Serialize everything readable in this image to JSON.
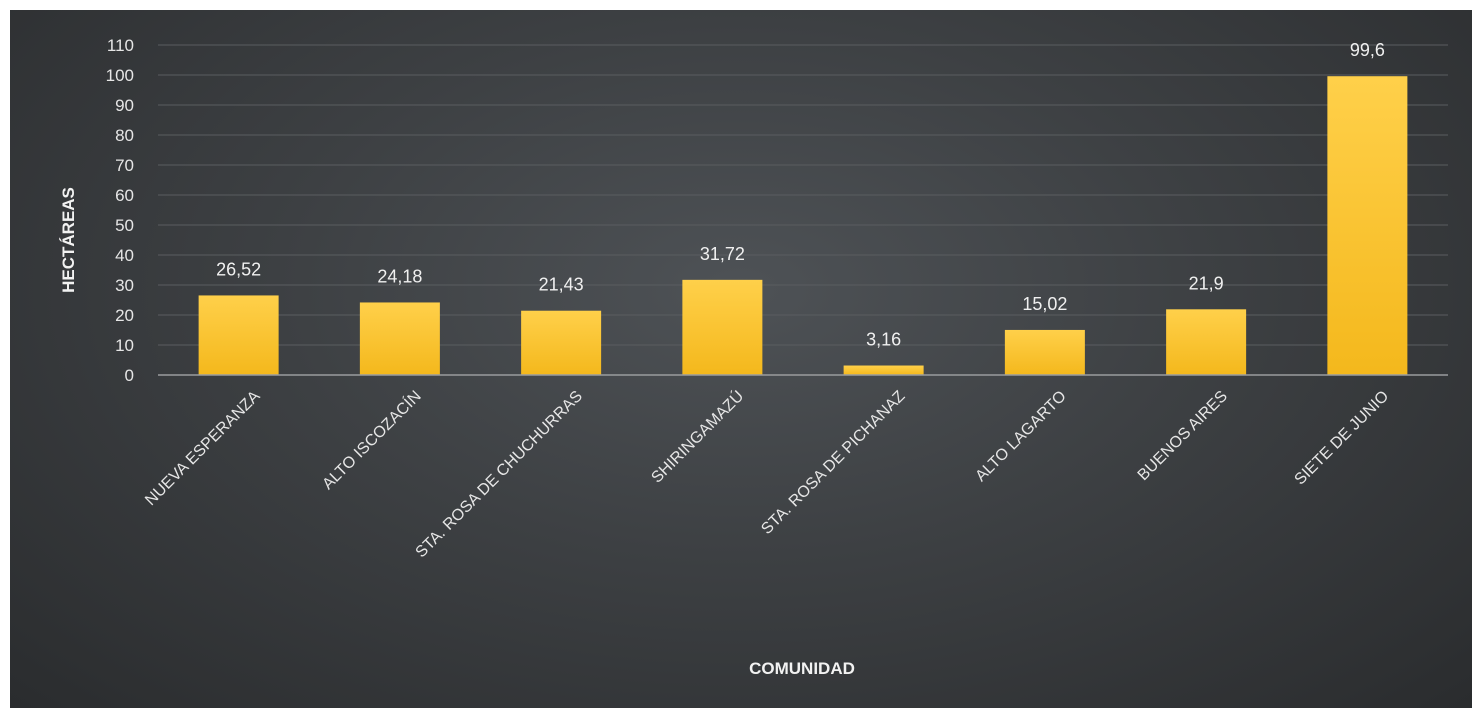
{
  "chart_data": {
    "type": "bar",
    "categories": [
      "NUEVA ESPERANZA",
      "ALTO ISCOZACÍN",
      "STA. ROSA DE CHUCHURRAS",
      "SHIRINGAMAZÚ",
      "STA. ROSA DE PICHANAZ",
      "ALTO LAGARTO",
      "BUENOS AIRES",
      "SIETE DE JUNIO"
    ],
    "values": [
      26.52,
      24.18,
      21.43,
      31.72,
      3.16,
      15.02,
      21.9,
      99.6
    ],
    "data_labels": [
      "26,52",
      "24,18",
      "21,43",
      "31,72",
      "3,16",
      "15,02",
      "21,9",
      "99,6"
    ],
    "xlabel": "COMUNIDAD",
    "ylabel": "HECTÁREAS",
    "ylim": [
      0,
      110
    ],
    "yticks": [
      "0",
      "10",
      "20",
      "30",
      "40",
      "50",
      "60",
      "70",
      "80",
      "90",
      "100",
      "110"
    ],
    "grid": true,
    "colors": {
      "bar_top": "#ffd04a",
      "bar_bottom": "#f4b81c",
      "gridline": "#5a5d60",
      "axis_line": "#9a9c9e",
      "text": "#e6e6e6"
    }
  }
}
